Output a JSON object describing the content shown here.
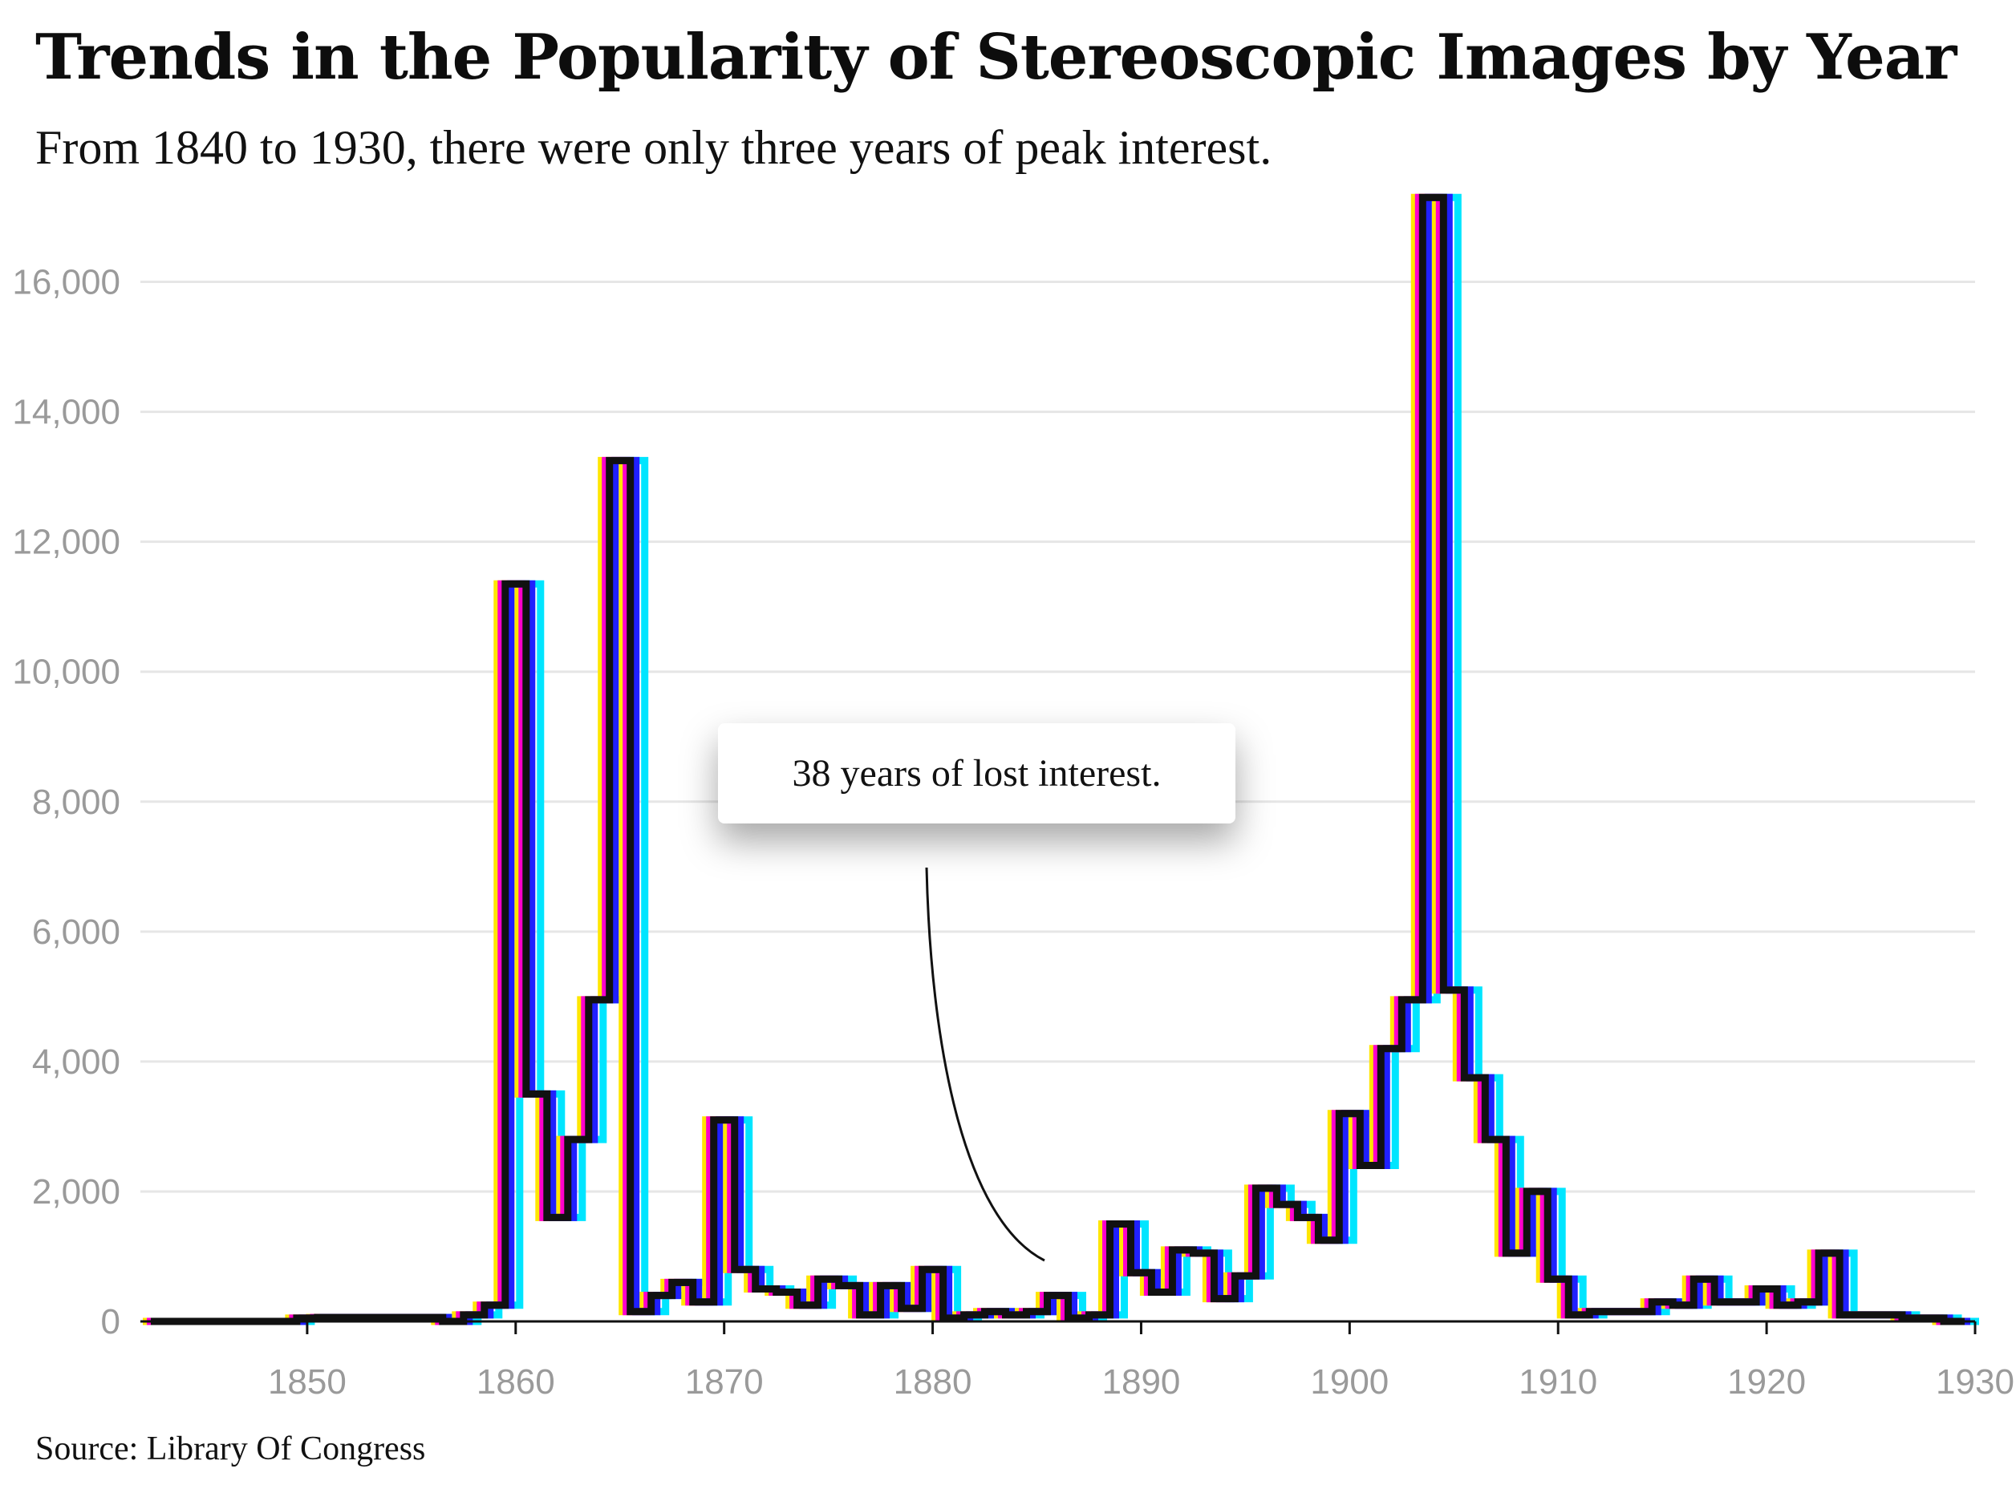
{
  "title": "Trends in the Popularity of Stereoscopic Images by Year",
  "subtitle": "From 1840 to 1930, there were only three years of peak interest.",
  "source": "Source: Library Of Congress",
  "annotation": "38 years of lost interest.",
  "colors": {
    "line": "#111111",
    "cyan": "#00e5ff",
    "yellow": "#ffe600",
    "magenta": "#ff00cc",
    "blue": "#2020ff",
    "grid": "#e6e6e6",
    "tick": "#9a9a9a"
  },
  "chart_data": {
    "type": "line",
    "style": "step",
    "title": "Trends in the Popularity of Stereoscopic Images by Year",
    "subtitle": "From 1840 to 1930, there were only three years of peak interest.",
    "xlabel": "",
    "ylabel": "",
    "xlim": [
      1842,
      1930
    ],
    "ylim": [
      0,
      17500
    ],
    "x_ticks": [
      1850,
      1860,
      1870,
      1880,
      1890,
      1900,
      1910,
      1920,
      1930
    ],
    "x_tick_labels": [
      "1850",
      "1860",
      "1870",
      "1880",
      "1890",
      "1900",
      "1910",
      "1920",
      "1930"
    ],
    "y_ticks": [
      0,
      2000,
      4000,
      6000,
      8000,
      10000,
      12000,
      14000,
      16000
    ],
    "y_tick_labels": [
      "0",
      "2,000",
      "4,000",
      "6,000",
      "8,000",
      "10,000",
      "12,000",
      "14,000",
      "16,000"
    ],
    "grid": true,
    "legend": "none",
    "x": [
      1843,
      1844,
      1845,
      1846,
      1847,
      1848,
      1849,
      1850,
      1851,
      1852,
      1853,
      1854,
      1855,
      1856,
      1857,
      1858,
      1859,
      1860,
      1861,
      1862,
      1863,
      1864,
      1865,
      1866,
      1867,
      1868,
      1869,
      1870,
      1871,
      1872,
      1873,
      1874,
      1875,
      1876,
      1877,
      1878,
      1879,
      1880,
      1881,
      1882,
      1883,
      1884,
      1885,
      1886,
      1887,
      1888,
      1889,
      1890,
      1891,
      1892,
      1893,
      1894,
      1895,
      1896,
      1897,
      1898,
      1899,
      1900,
      1901,
      1902,
      1903,
      1904,
      1905,
      1906,
      1907,
      1908,
      1909,
      1910,
      1911,
      1912,
      1913,
      1914,
      1915,
      1916,
      1917,
      1918,
      1919,
      1920,
      1921,
      1922,
      1923,
      1924,
      1925,
      1926,
      1927,
      1928,
      1929
    ],
    "values": [
      0,
      0,
      0,
      0,
      0,
      0,
      0,
      50,
      60,
      60,
      60,
      60,
      60,
      60,
      0,
      100,
      250,
      11350,
      3500,
      1600,
      2800,
      4950,
      13250,
      150,
      400,
      600,
      300,
      3100,
      800,
      500,
      450,
      250,
      650,
      550,
      100,
      550,
      200,
      800,
      50,
      100,
      150,
      100,
      150,
      400,
      50,
      100,
      1500,
      750,
      450,
      1100,
      1050,
      350,
      700,
      2050,
      1800,
      1600,
      1250,
      3200,
      2400,
      4200,
      4950,
      17300,
      5100,
      3750,
      2800,
      1050,
      2000,
      650,
      100,
      150,
      150,
      150,
      300,
      250,
      650,
      300,
      300,
      500,
      250,
      300,
      1050,
      100,
      100,
      100,
      50,
      50,
      0
    ]
  }
}
